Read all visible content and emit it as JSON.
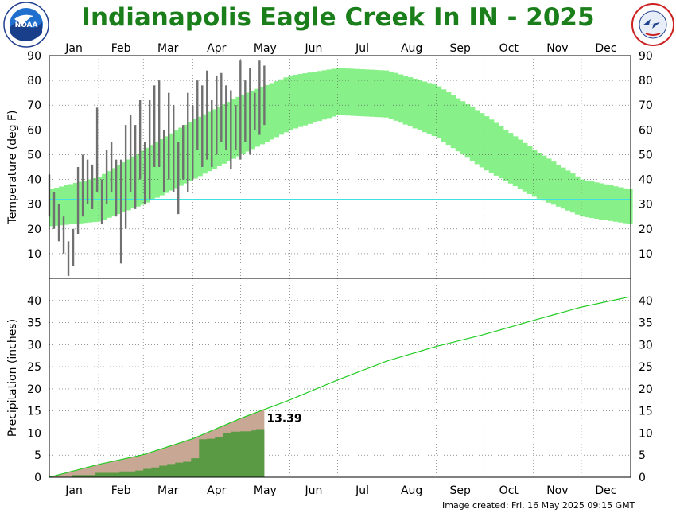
{
  "title": "Indianapolis Eagle Creek In IN - 2025",
  "footer": "Image created: Fri, 16 May 2025 09:15 GMT",
  "logos": {
    "left": "NOAA",
    "left_ring": "U.S. DEPARTMENT OF COMMERCE",
    "right": "NATIONAL WEATHER SERVICE"
  },
  "colors": {
    "title": "#1a7f1a",
    "normal_band": "#88f088",
    "observed_bar": "#707070",
    "freezing_line": "#40e0e0",
    "precip_normal_fill": "#c8a894",
    "precip_observed_fill": "#5a9a44",
    "precip_normal_line": "#22cc22"
  },
  "chart_data": [
    {
      "type": "bar",
      "title": "",
      "xlabel": "",
      "ylabel": "Temperature (deg F)",
      "ylim": [
        0,
        90
      ],
      "yticks": [
        10,
        20,
        30,
        40,
        50,
        60,
        70,
        80,
        90
      ],
      "months": [
        "Jan",
        "Feb",
        "Mar",
        "Apr",
        "May",
        "Jun",
        "Jul",
        "Aug",
        "Sep",
        "Oct",
        "Nov",
        "Dec"
      ],
      "grid": true,
      "freezing_line": 32,
      "normal_range": {
        "x_day": [
          1,
          32,
          60,
          91,
          121,
          152,
          182,
          213,
          244,
          274,
          305,
          335,
          365
        ],
        "high": [
          36,
          41,
          52,
          64,
          74,
          82,
          85,
          84,
          78,
          66,
          52,
          40,
          36
        ],
        "low": [
          21,
          23,
          30,
          40,
          50,
          60,
          66,
          65,
          57,
          44,
          33,
          25,
          22
        ]
      },
      "observed": {
        "x_day": [
          1,
          4,
          7,
          10,
          13,
          16,
          19,
          22,
          25,
          28,
          31,
          34,
          37,
          40,
          43,
          46,
          49,
          52,
          55,
          58,
          61,
          64,
          67,
          70,
          73,
          76,
          79,
          82,
          85,
          88,
          91,
          94,
          97,
          100,
          103,
          106,
          109,
          112,
          115,
          118,
          121,
          124,
          127,
          130,
          133,
          136
        ],
        "high": [
          42,
          35,
          30,
          25,
          15,
          20,
          45,
          50,
          48,
          46,
          69,
          40,
          52,
          55,
          48,
          48,
          62,
          66,
          62,
          72,
          55,
          72,
          78,
          80,
          60,
          75,
          70,
          55,
          62,
          75,
          70,
          80,
          78,
          84,
          72,
          82,
          83,
          78,
          76,
          70,
          88,
          80,
          85,
          75,
          88,
          86
        ],
        "low": [
          25,
          20,
          15,
          10,
          1,
          5,
          18,
          25,
          30,
          28,
          35,
          22,
          30,
          35,
          25,
          6,
          20,
          35,
          28,
          40,
          30,
          32,
          45,
          45,
          35,
          40,
          35,
          26,
          40,
          35,
          40,
          52,
          45,
          48,
          45,
          50,
          55,
          52,
          44,
          52,
          48,
          55,
          50,
          60,
          58,
          62
        ]
      }
    },
    {
      "type": "area",
      "title": "",
      "xlabel": "",
      "ylabel": "Precipitation (inches)",
      "ylim": [
        0,
        45
      ],
      "yticks": [
        0,
        5,
        10,
        15,
        20,
        25,
        30,
        35,
        40
      ],
      "months": [
        "Jan",
        "Feb",
        "Mar",
        "Apr",
        "May",
        "Jun",
        "Jul",
        "Aug",
        "Sep",
        "Oct",
        "Nov",
        "Dec"
      ],
      "grid": true,
      "ytd_label": "13.39",
      "normal_cumulative": {
        "x_day": [
          1,
          32,
          60,
          91,
          121,
          152,
          182,
          213,
          244,
          274,
          305,
          335,
          365
        ],
        "values": [
          0,
          2.9,
          5.1,
          8.7,
          13.3,
          17.5,
          22.0,
          26.3,
          29.6,
          32.3,
          35.5,
          38.5,
          40.8
        ]
      },
      "observed_cumulative": {
        "x_day": [
          1,
          15,
          30,
          38,
          45,
          55,
          60,
          65,
          70,
          75,
          80,
          85,
          90,
          95,
          100,
          105,
          110,
          115,
          121,
          128,
          131,
          136
        ],
        "values": [
          0,
          0.5,
          1.0,
          1.0,
          1.3,
          1.5,
          1.9,
          2.2,
          2.6,
          3.0,
          3.3,
          3.5,
          4.3,
          8.6,
          8.7,
          9.0,
          10.0,
          10.3,
          10.4,
          10.6,
          10.9,
          13.39
        ]
      }
    }
  ]
}
